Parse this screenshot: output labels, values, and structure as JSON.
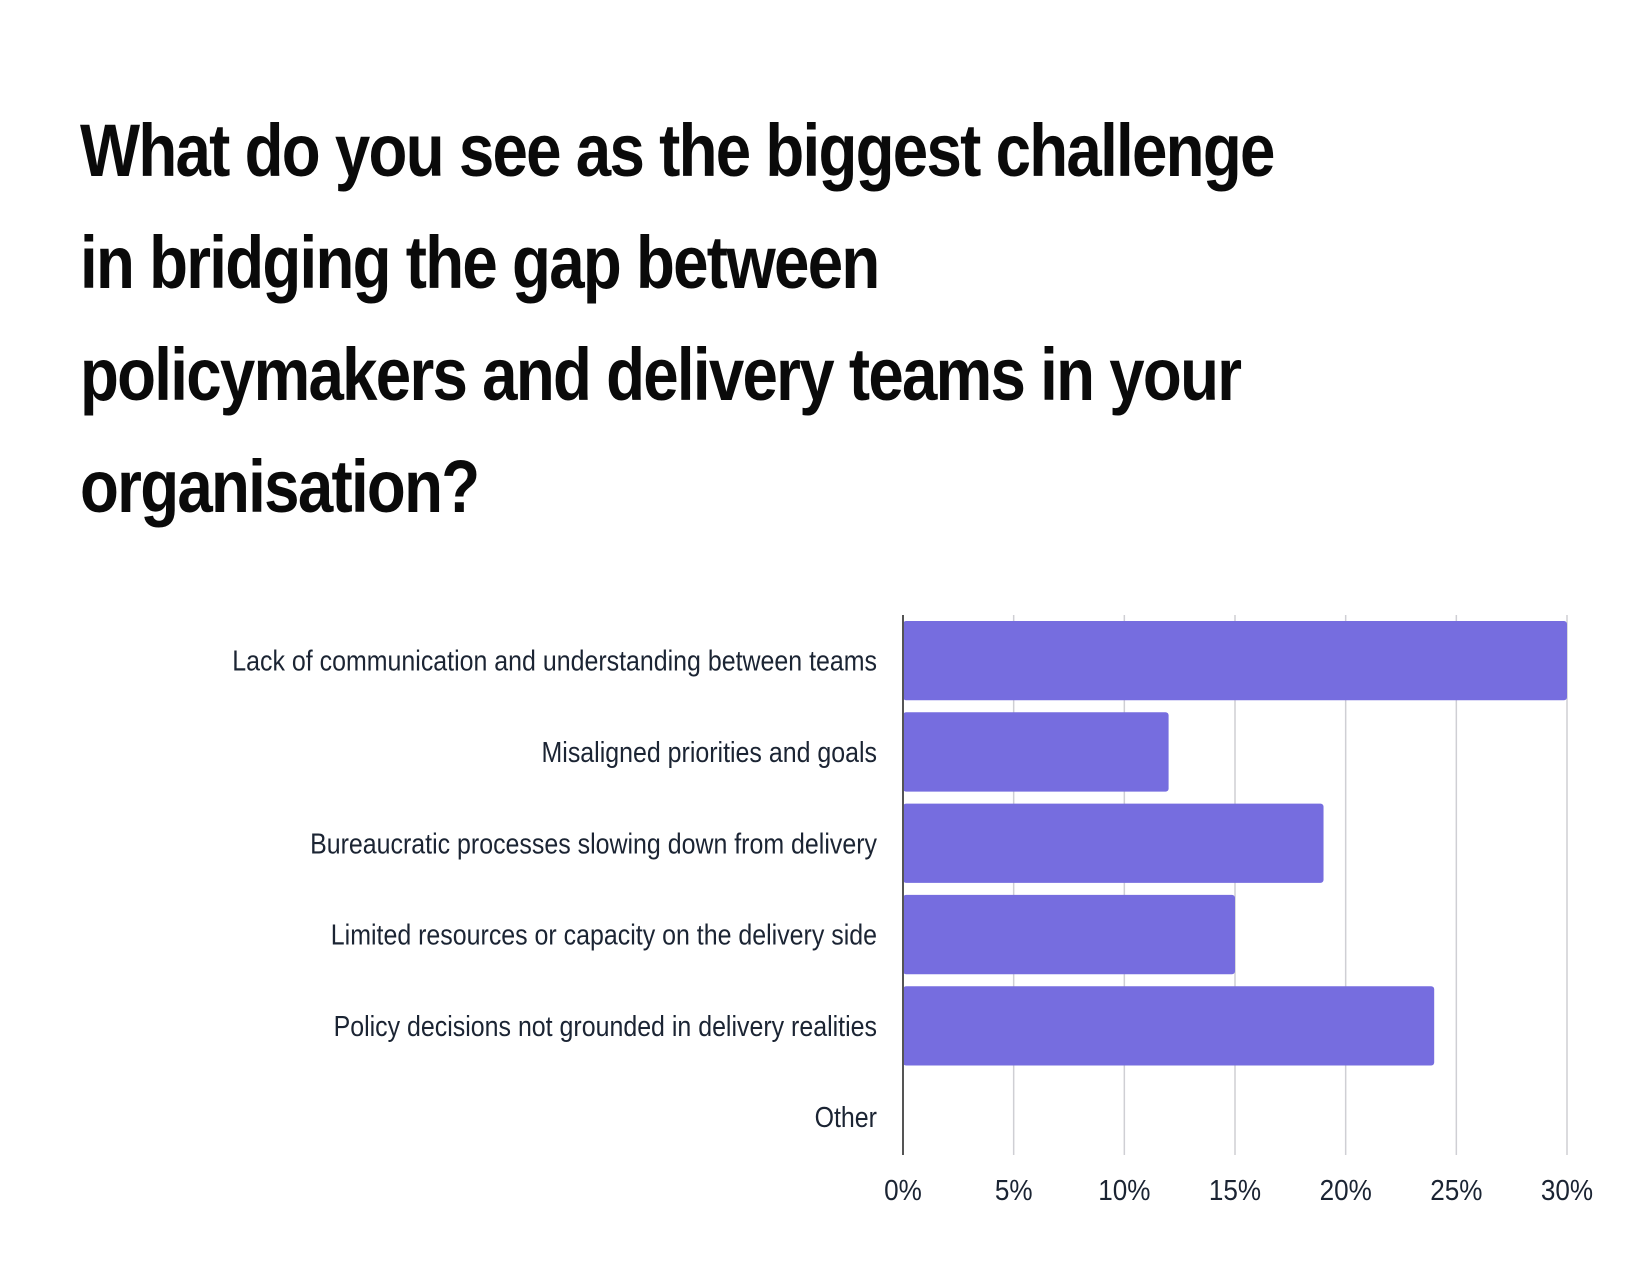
{
  "title_lines": [
    "What do you see as the biggest challenge",
    "in bridging the gap between",
    "policymakers and delivery teams in your",
    "organisation?"
  ],
  "colors": {
    "bar": "#766ddf",
    "grid": "#cfcfd4",
    "axis": "#555555",
    "text": "#1b2433"
  },
  "chart_data": {
    "type": "bar",
    "orientation": "horizontal",
    "title": "What do you see as the biggest challenge in bridging the gap between policymakers and delivery teams in your organisation?",
    "categories": [
      "Lack of communication and understanding between teams",
      "Misaligned priorities and goals",
      "Bureaucratic processes slowing down from delivery",
      "Limited resources or capacity on the delivery side",
      "Policy decisions not grounded in delivery realities",
      "Other"
    ],
    "values": [
      30,
      12,
      19,
      15,
      24,
      0
    ],
    "xlim": [
      0,
      30
    ],
    "xticks": [
      "0%",
      "5%",
      "10%",
      "15%",
      "20%",
      "25%",
      "30%"
    ],
    "value_unit": "%",
    "grid": true,
    "legend": "none"
  }
}
